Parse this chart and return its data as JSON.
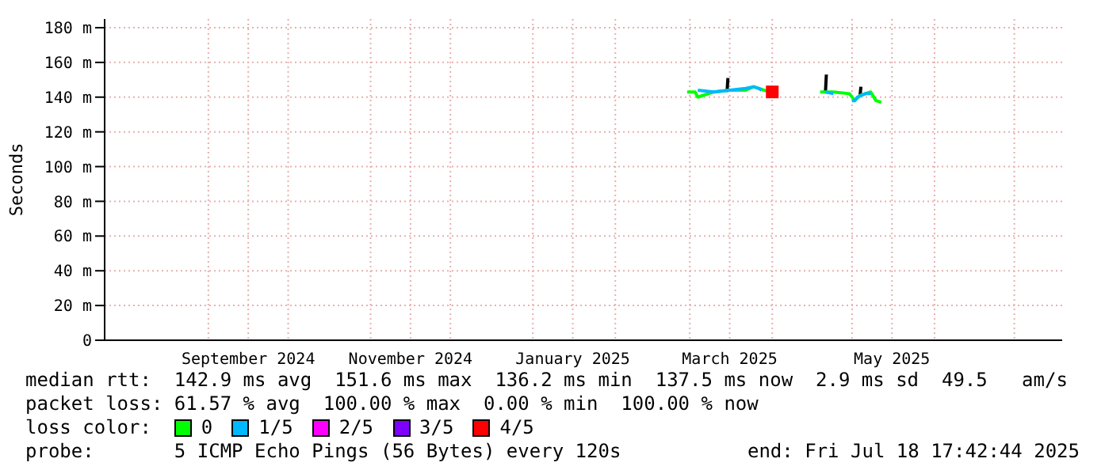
{
  "chart_data": {
    "type": "line",
    "ylabel": "Seconds",
    "legend_title": "loss color:",
    "xlim": [
      "2024-07-24",
      "2025-07-19"
    ],
    "xticks": [
      {
        "value": "2024-09-01",
        "label": null
      },
      {
        "value": "2024-09-16",
        "label": "September 2024"
      },
      {
        "value": "2024-10-01",
        "label": null
      },
      {
        "value": "2024-11-01",
        "label": null
      },
      {
        "value": "2024-11-16",
        "label": "November 2024"
      },
      {
        "value": "2024-12-01",
        "label": null
      },
      {
        "value": "2025-01-01",
        "label": null
      },
      {
        "value": "2025-01-16",
        "label": "January 2025"
      },
      {
        "value": "2025-02-01",
        "label": null
      },
      {
        "value": "2025-03-01",
        "label": null
      },
      {
        "value": "2025-03-16",
        "label": "March 2025"
      },
      {
        "value": "2025-04-01",
        "label": null
      },
      {
        "value": "2025-05-01",
        "label": null
      },
      {
        "value": "2025-05-16",
        "label": "May 2025"
      },
      {
        "value": "2025-06-01",
        "label": null
      },
      {
        "value": "2025-07-01",
        "label": null
      }
    ],
    "ylim": [
      0,
      185
    ],
    "yticks": [
      0,
      {
        "value": 20,
        "label": "20 m"
      },
      {
        "value": 40,
        "label": "40 m"
      },
      {
        "value": 60,
        "label": "60 m"
      },
      {
        "value": 80,
        "label": "80 m"
      },
      {
        "value": 100,
        "label": "100 m"
      },
      {
        "value": 120,
        "label": "120 m"
      },
      {
        "value": 140,
        "label": "140 m"
      },
      {
        "value": 160,
        "label": "160 m"
      },
      {
        "value": 180,
        "label": "180 m"
      }
    ],
    "grid": true,
    "legend": "bottom",
    "marker": "none",
    "line_style": "solid",
    "series": [
      {
        "color": "#000000",
        "x": [
          "2025-03-15",
          "2025-03-15T08:00",
          "2025-03-16",
          "2025-04-21",
          "2025-04-21T08:00",
          "2025-04-22",
          "2025-05-04",
          "2025-05-04T08:00"
        ],
        "values": [
          143,
          151,
          null,
          143,
          153,
          null,
          141,
          146
        ]
      },
      {
        "name": "0",
        "color": "#00ff00",
        "x": [
          "2025-02-28",
          "2025-03-03",
          "2025-03-04",
          "2025-03-10",
          "2025-03-16",
          "2025-03-22",
          "2025-03-25",
          "2025-03-27",
          "2025-03-31",
          "2025-04-01",
          "2025-04-19",
          "2025-04-24",
          "2025-04-30",
          "2025-05-02",
          "2025-05-04",
          "2025-05-08",
          "2025-05-10",
          "2025-05-12"
        ],
        "values": [
          143,
          143,
          140,
          143,
          144,
          144,
          146,
          145,
          143,
          null,
          143,
          143,
          142,
          138,
          141,
          143,
          138,
          137
        ]
      },
      {
        "name": "1/5",
        "color": "#00b8ff",
        "x": [
          "2025-03-04",
          "2025-03-10",
          "2025-03-16",
          "2025-03-22",
          "2025-03-25",
          "2025-03-27",
          "2025-03-28",
          "2025-04-01",
          "2025-04-21",
          "2025-04-24",
          "2025-04-25",
          "2025-05-01",
          "2025-05-02",
          "2025-05-03",
          "2025-05-06",
          "2025-05-08"
        ],
        "values": [
          144,
          143,
          144,
          145,
          146,
          145,
          144,
          null,
          143,
          142,
          null,
          138,
          138,
          140,
          142,
          142
        ]
      },
      {
        "name": "2/5",
        "color": "#ff00ff"
      },
      {
        "name": "3/5",
        "color": "#7e00ff"
      },
      {
        "name": "4/5",
        "color": "#ff0000",
        "type": "scatter",
        "marker": "square",
        "x": [
          "2025-04-01"
        ],
        "values": [
          143
        ]
      }
    ],
    "annotations": [
      "median rtt:  142.9 ms avg  151.6 ms max  136.2 ms min  137.5 ms now  2.9 ms sd  49.5   am/s",
      "packet loss: 61.57 % avg  100.00 % max  0.00 % min  100.00 % now",
      "probe:       5 ICMP Echo Pings (56 Bytes) every 120s",
      "end: Fri Jul 18 17:42:44 2025"
    ]
  }
}
